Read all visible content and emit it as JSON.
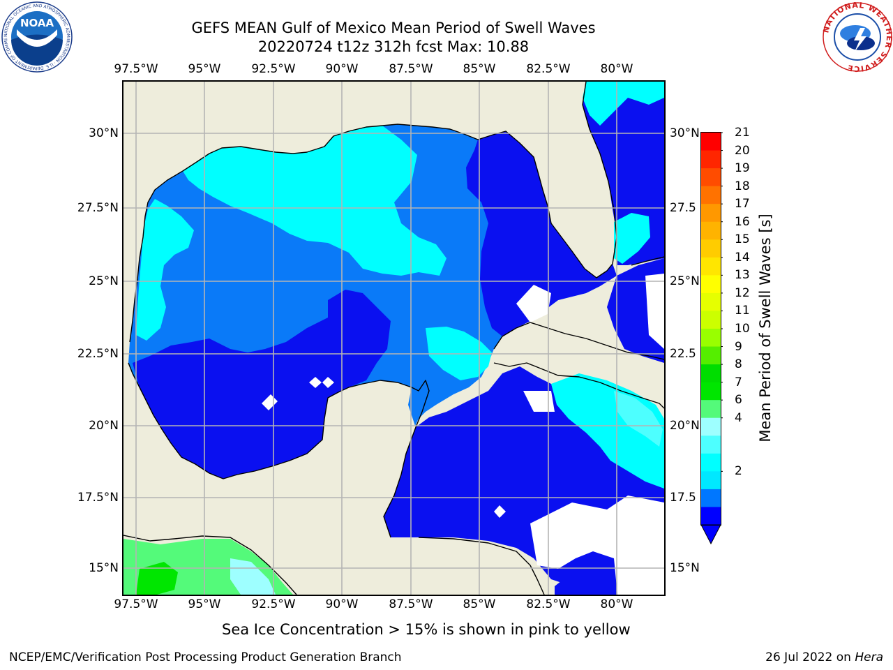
{
  "title_line1": "GEFS MEAN Gulf of Mexico Mean Period of Swell Waves",
  "title_line2": "20220724 t12z 312h fcst   Max: 10.88",
  "lon_labels": [
    "97.5°W",
    "95°W",
    "92.5°W",
    "90°W",
    "87.5°W",
    "85°W",
    "82.5°W",
    "80°W"
  ],
  "lat_labels_left": [
    "30°N",
    "27.5°N",
    "25°N",
    "22.5°N",
    "20°N",
    "17.5°N",
    "15°N"
  ],
  "lat_labels_right": [
    "30°N",
    "27.5",
    "25°N",
    "22.5",
    "20°N",
    "17.5",
    "15°N"
  ],
  "colorbar": {
    "title": "Mean Period of Swell Waves [s]",
    "ticks": [
      "21",
      "20",
      "19",
      "18",
      "17",
      "16",
      "15",
      "14",
      "13",
      "12",
      "11",
      "10",
      "9",
      "8",
      "7",
      "6",
      "4",
      "2"
    ],
    "colors_top_to_bottom": [
      "#ff0000",
      "#ff2600",
      "#ff4c00",
      "#ff7200",
      "#ff9800",
      "#ffb300",
      "#ffcc00",
      "#ffe600",
      "#ffff00",
      "#e6ff00",
      "#ccff00",
      "#99ff00",
      "#55ee00",
      "#00dd00",
      "#00e600",
      "#54fa7a",
      "#9effff",
      "#4dffff",
      "#00ffff",
      "#00e8ff",
      "#0077ff",
      "#0000ff"
    ]
  },
  "fill_colors": {
    "land": "#eeeddc",
    "ocean_2_4": "#0a10f0",
    "ocean_4_6": "#0a7af8",
    "ocean_6_8": "#00ffff",
    "ocean_8_9": "#4dffff",
    "ocean_9_10": "#9effff",
    "ocean_10_11": "#54fa7a",
    "ocean_11_12": "#00e600",
    "gridline": "#b4b4b4"
  },
  "note": "Sea Ice Concentration > 15% is shown in pink to yellow",
  "footer_left": "NCEP/EMC/Verification Post Processing Product Generation Branch",
  "footer_date": "26 Jul 2022 on",
  "footer_machine": "Hera",
  "logos": {
    "noaa": "NOAA",
    "noaa_ring": "NATIONAL OCEANIC AND ATMOSPHERIC ADMINISTRATION · U.S. DEPARTMENT OF COMMERCE",
    "nws_ring": "NATIONAL WEATHER SERVICE"
  }
}
